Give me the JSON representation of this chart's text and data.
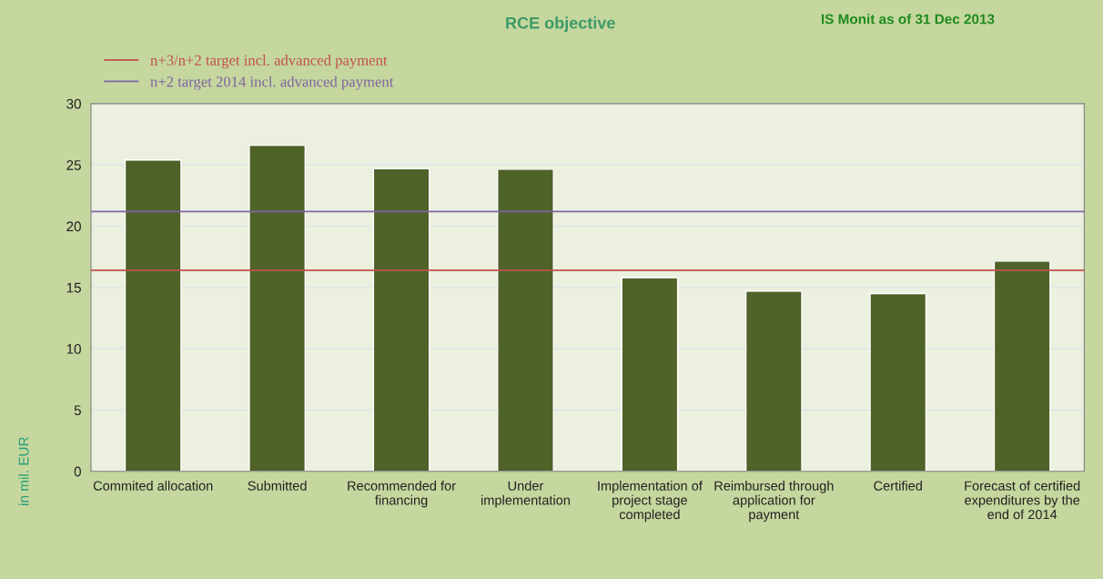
{
  "chart_data": {
    "type": "bar",
    "title": "RCE objective",
    "ylabel": "in mil. EUR",
    "annotations": [
      "IS Monit as of 31 Dec 2013"
    ],
    "categories": [
      "Commited allocation",
      "Submitted",
      "Recommended for\nfinancing",
      "Under\nimplementation",
      "Implementation of\nproject stage\ncompleted",
      "Reimbursed through\napplication for\npayment",
      "Certified",
      "Forecast of certified\nexpenditures by the\nend of 2014"
    ],
    "values": [
      25.4,
      26.6,
      24.7,
      24.65,
      15.8,
      14.7,
      14.5,
      17.15
    ],
    "color": "#4f6228",
    "ylim": [
      0,
      30
    ],
    "yticks": [
      0,
      5,
      10,
      15,
      20,
      25,
      30
    ],
    "grid": "y",
    "ref_lines": [
      {
        "axis": "y",
        "value": 16.4,
        "label": "n+3/n+2 target incl. advanced payment",
        "color": "#c0504d"
      },
      {
        "axis": "y",
        "value": 21.2,
        "label": "n+2 target 2014 incl. advanced payment",
        "color": "#8064a2"
      }
    ],
    "legend": "top left"
  }
}
